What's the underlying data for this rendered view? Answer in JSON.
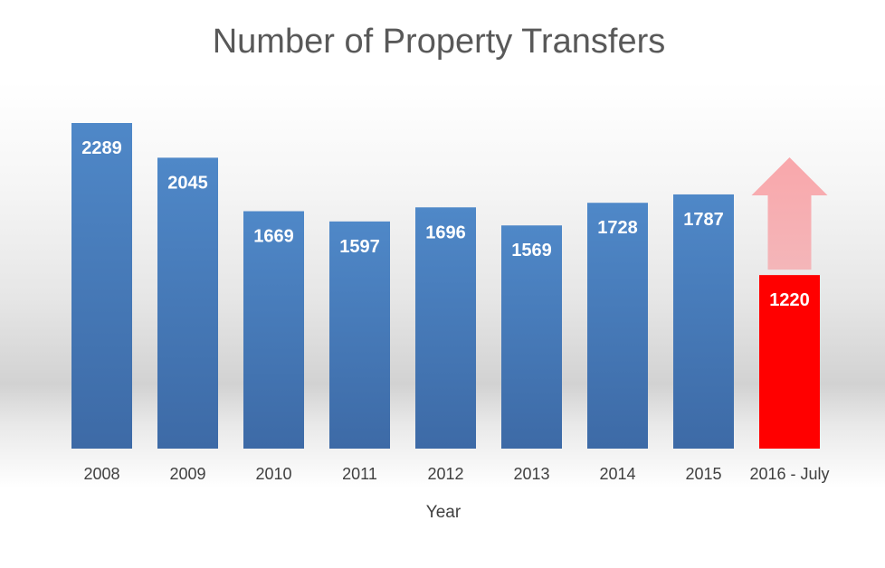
{
  "chart_data": {
    "type": "bar",
    "title": "Number of Property Transfers",
    "xlabel": "Year",
    "ylabel": "",
    "categories": [
      "2008",
      "2009",
      "2010",
      "2011",
      "2012",
      "2013",
      "2014",
      "2015",
      "2016 - July"
    ],
    "values": [
      2289,
      2045,
      1669,
      1597,
      1696,
      1569,
      1728,
      1787,
      1220
    ],
    "bar_colors": [
      "#4a7ebb",
      "#4a7ebb",
      "#4a7ebb",
      "#4a7ebb",
      "#4a7ebb",
      "#4a7ebb",
      "#4a7ebb",
      "#4a7ebb",
      "#ff0000"
    ],
    "ylim": [
      0,
      2289
    ],
    "grid": false,
    "legend": "none",
    "annotations": [
      {
        "type": "arrow-up-icon",
        "category": "2016 - July",
        "color": "#f4a3a7"
      }
    ]
  }
}
